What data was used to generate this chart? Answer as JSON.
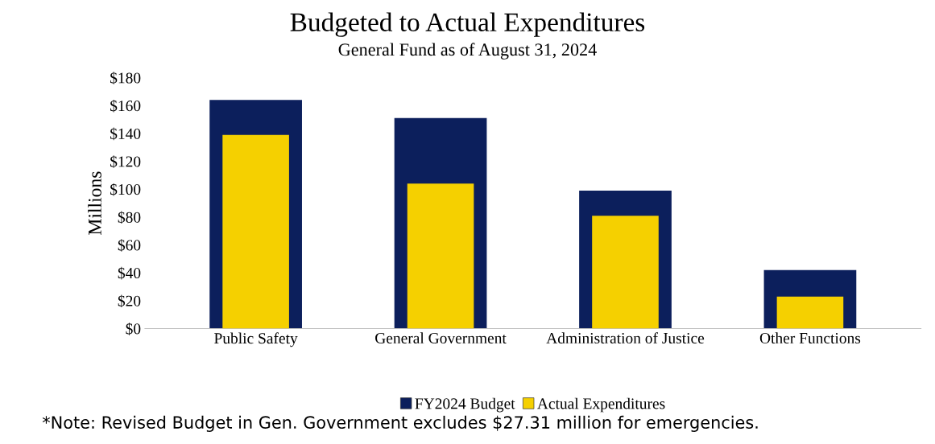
{
  "chart_data": {
    "type": "bar",
    "title": "Budgeted to Actual Expenditures",
    "subtitle": "General Fund as of August 31, 2024",
    "ylabel": "Millions",
    "categories": [
      "Public Safety",
      "General Government",
      "Administration of Justice",
      "Other Functions"
    ],
    "series": [
      {
        "name": "FY2024 Budget",
        "color": "#0c1f5c",
        "values": [
          164,
          151,
          99,
          42
        ]
      },
      {
        "name": "Actual Expenditures",
        "color": "#f5d000",
        "values": [
          139,
          104,
          81,
          23
        ]
      }
    ],
    "ylim": [
      0,
      180
    ],
    "yticks": [
      {
        "value": 0,
        "label": "$0"
      },
      {
        "value": 20,
        "label": "$20"
      },
      {
        "value": 40,
        "label": "$40"
      },
      {
        "value": 60,
        "label": "$60"
      },
      {
        "value": 80,
        "label": "$80"
      },
      {
        "value": 100,
        "label": "$100"
      },
      {
        "value": 120,
        "label": "$120"
      },
      {
        "value": 140,
        "label": "$140"
      },
      {
        "value": 160,
        "label": "$160"
      },
      {
        "value": 180,
        "label": "$180"
      }
    ],
    "grid": false,
    "legend": "bottom",
    "annotations": [
      "*Note: Revised Budget in Gen. Government excludes $27.31 million for emergencies."
    ]
  }
}
